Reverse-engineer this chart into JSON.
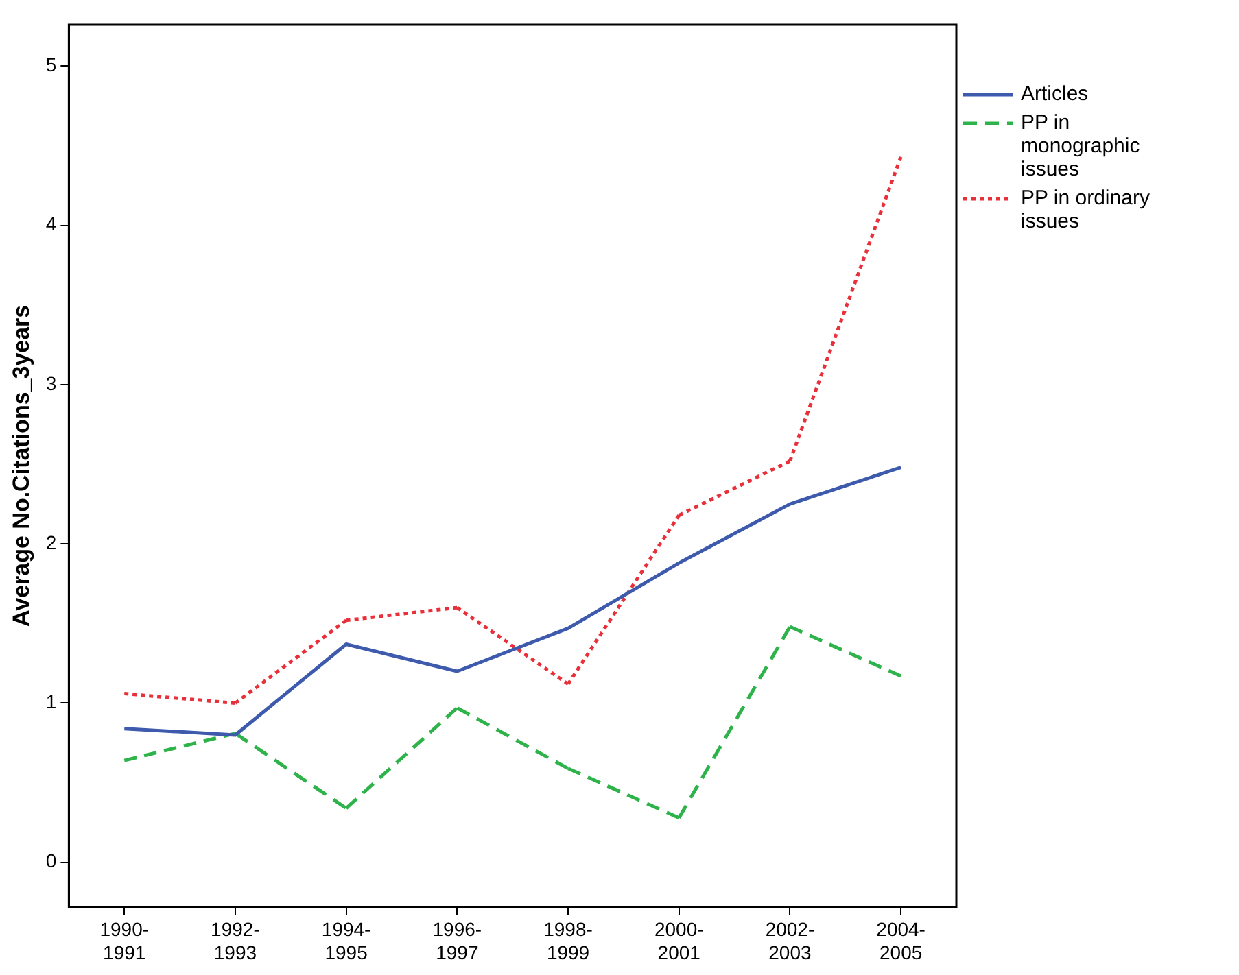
{
  "chart_data": {
    "type": "line",
    "ylabel": "Average No.Citations_3years",
    "categories": [
      "1990-1991",
      "1992-1993",
      "1994-1995",
      "1996-1997",
      "1998-1999",
      "2000-2001",
      "2002-2003",
      "2004-2005"
    ],
    "series": [
      {
        "name": "Articles",
        "color": "#3d5aad",
        "line_style": "solid",
        "values": [
          0.84,
          0.8,
          1.37,
          1.2,
          1.47,
          1.88,
          2.25,
          2.48
        ]
      },
      {
        "name": "PP in monographic issues",
        "color": "#2db34a",
        "line_style": "dashed",
        "values": [
          0.64,
          0.81,
          0.34,
          0.97,
          0.59,
          0.28,
          1.48,
          1.17
        ]
      },
      {
        "name": "PP in ordinary issues",
        "color": "#e8303a",
        "line_style": "dotted",
        "values": [
          1.06,
          1.0,
          1.52,
          1.6,
          1.12,
          2.18,
          2.52,
          4.43
        ]
      }
    ],
    "ylim": [
      -0.28,
      5.26
    ],
    "yticks": [
      0,
      1,
      2,
      3,
      4,
      5
    ],
    "grid": false,
    "legend": "right",
    "marker": "none"
  }
}
